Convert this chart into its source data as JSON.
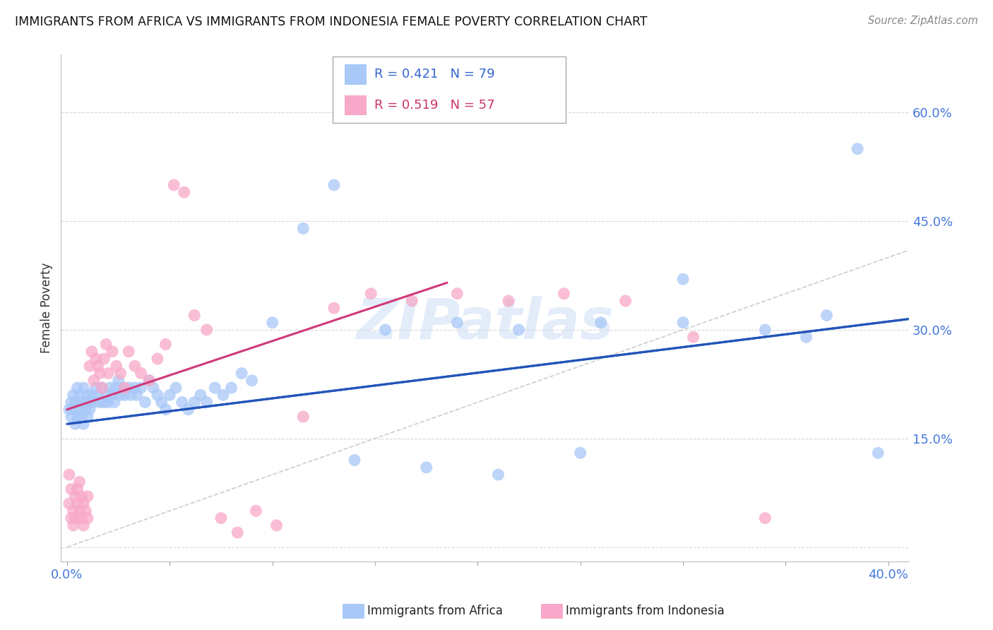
{
  "title": "IMMIGRANTS FROM AFRICA VS IMMIGRANTS FROM INDONESIA FEMALE POVERTY CORRELATION CHART",
  "source": "Source: ZipAtlas.com",
  "ylabel": "Female Poverty",
  "xlim": [
    -0.003,
    0.41
  ],
  "ylim": [
    -0.02,
    0.68
  ],
  "africa_R": 0.421,
  "africa_N": 79,
  "indonesia_R": 0.519,
  "indonesia_N": 57,
  "africa_color": "#a8c8f8",
  "africa_line_color": "#2255bb",
  "indonesia_color": "#f8a8c8",
  "indonesia_line_color": "#d03878",
  "watermark": "ZIPatlas",
  "diagonal_line_color": "#cccccc",
  "africa_line_x0": 0.0,
  "africa_line_y0": 0.17,
  "africa_line_x1": 0.41,
  "africa_line_y1": 0.315,
  "indonesia_line_x0": 0.0,
  "indonesia_line_y0": 0.19,
  "indonesia_line_x1": 0.185,
  "indonesia_line_y1": 0.365,
  "africa_scatter_x": [
    0.001,
    0.002,
    0.002,
    0.003,
    0.003,
    0.004,
    0.004,
    0.005,
    0.005,
    0.006,
    0.006,
    0.007,
    0.007,
    0.008,
    0.008,
    0.009,
    0.009,
    0.01,
    0.01,
    0.011,
    0.011,
    0.012,
    0.013,
    0.014,
    0.015,
    0.016,
    0.017,
    0.018,
    0.019,
    0.02,
    0.021,
    0.022,
    0.023,
    0.024,
    0.025,
    0.026,
    0.027,
    0.028,
    0.03,
    0.031,
    0.033,
    0.034,
    0.036,
    0.038,
    0.04,
    0.042,
    0.044,
    0.046,
    0.048,
    0.05,
    0.053,
    0.056,
    0.059,
    0.062,
    0.065,
    0.068,
    0.072,
    0.076,
    0.08,
    0.085,
    0.09,
    0.1,
    0.115,
    0.13,
    0.155,
    0.19,
    0.22,
    0.26,
    0.3,
    0.34,
    0.36,
    0.37,
    0.385,
    0.395,
    0.3,
    0.25,
    0.21,
    0.175,
    0.14
  ],
  "africa_scatter_y": [
    0.19,
    0.2,
    0.18,
    0.19,
    0.21,
    0.17,
    0.2,
    0.18,
    0.22,
    0.19,
    0.21,
    0.18,
    0.2,
    0.17,
    0.22,
    0.19,
    0.2,
    0.18,
    0.21,
    0.2,
    0.19,
    0.21,
    0.2,
    0.22,
    0.21,
    0.2,
    0.22,
    0.2,
    0.21,
    0.2,
    0.22,
    0.21,
    0.2,
    0.22,
    0.23,
    0.21,
    0.22,
    0.21,
    0.22,
    0.21,
    0.22,
    0.21,
    0.22,
    0.2,
    0.23,
    0.22,
    0.21,
    0.2,
    0.19,
    0.21,
    0.22,
    0.2,
    0.19,
    0.2,
    0.21,
    0.2,
    0.22,
    0.21,
    0.22,
    0.24,
    0.23,
    0.31,
    0.44,
    0.5,
    0.3,
    0.31,
    0.3,
    0.31,
    0.31,
    0.3,
    0.29,
    0.32,
    0.55,
    0.13,
    0.37,
    0.13,
    0.1,
    0.11,
    0.12
  ],
  "indonesia_scatter_x": [
    0.001,
    0.001,
    0.002,
    0.002,
    0.003,
    0.003,
    0.004,
    0.004,
    0.005,
    0.005,
    0.006,
    0.006,
    0.007,
    0.007,
    0.008,
    0.008,
    0.009,
    0.01,
    0.01,
    0.011,
    0.012,
    0.013,
    0.014,
    0.015,
    0.016,
    0.017,
    0.018,
    0.019,
    0.02,
    0.022,
    0.024,
    0.026,
    0.028,
    0.03,
    0.033,
    0.036,
    0.04,
    0.044,
    0.048,
    0.052,
    0.057,
    0.062,
    0.068,
    0.075,
    0.083,
    0.092,
    0.102,
    0.115,
    0.13,
    0.148,
    0.168,
    0.19,
    0.215,
    0.242,
    0.272,
    0.305,
    0.34
  ],
  "indonesia_scatter_y": [
    0.1,
    0.06,
    0.08,
    0.04,
    0.05,
    0.03,
    0.07,
    0.04,
    0.06,
    0.08,
    0.05,
    0.09,
    0.04,
    0.07,
    0.06,
    0.03,
    0.05,
    0.07,
    0.04,
    0.25,
    0.27,
    0.23,
    0.26,
    0.25,
    0.24,
    0.22,
    0.26,
    0.28,
    0.24,
    0.27,
    0.25,
    0.24,
    0.22,
    0.27,
    0.25,
    0.24,
    0.23,
    0.26,
    0.28,
    0.5,
    0.49,
    0.32,
    0.3,
    0.04,
    0.02,
    0.05,
    0.03,
    0.18,
    0.33,
    0.35,
    0.34,
    0.35,
    0.34,
    0.35,
    0.34,
    0.29,
    0.04
  ]
}
